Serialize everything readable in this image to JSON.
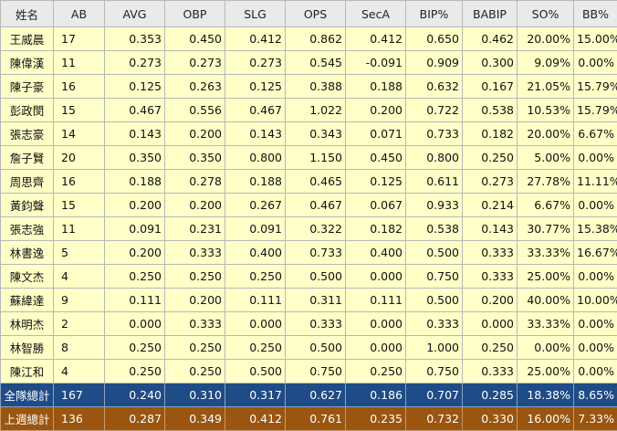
{
  "headers": [
    "姓名",
    "AB",
    "AVG",
    "OBP",
    "SLG",
    "OPS",
    "SecA",
    "BIP%",
    "BABIP",
    "SO%",
    "BB%"
  ],
  "rows": [
    {
      "name": "王威晨",
      "AB": "17",
      "AVG": "0.353",
      "OBP": "0.450",
      "SLG": "0.412",
      "OPS": "0.862",
      "SecA": "0.412",
      "BIP": "0.650",
      "BABIP": "0.462",
      "SO": "20.00%",
      "BB": "15.00%"
    },
    {
      "name": "陳偉漢",
      "AB": "11",
      "AVG": "0.273",
      "OBP": "0.273",
      "SLG": "0.273",
      "OPS": "0.545",
      "SecA": "-0.091",
      "BIP": "0.909",
      "BABIP": "0.300",
      "SO": "9.09%",
      "BB": "0.00%"
    },
    {
      "name": "陳子豪",
      "AB": "16",
      "AVG": "0.125",
      "OBP": "0.263",
      "SLG": "0.125",
      "OPS": "0.388",
      "SecA": "0.188",
      "BIP": "0.632",
      "BABIP": "0.167",
      "SO": "21.05%",
      "BB": "15.79%"
    },
    {
      "name": "彭政閔",
      "AB": "15",
      "AVG": "0.467",
      "OBP": "0.556",
      "SLG": "0.467",
      "OPS": "1.022",
      "SecA": "0.200",
      "BIP": "0.722",
      "BABIP": "0.538",
      "SO": "10.53%",
      "BB": "15.79%"
    },
    {
      "name": "張志豪",
      "AB": "14",
      "AVG": "0.143",
      "OBP": "0.200",
      "SLG": "0.143",
      "OPS": "0.343",
      "SecA": "0.071",
      "BIP": "0.733",
      "BABIP": "0.182",
      "SO": "20.00%",
      "BB": "6.67%"
    },
    {
      "name": "詹子賢",
      "AB": "20",
      "AVG": "0.350",
      "OBP": "0.350",
      "SLG": "0.800",
      "OPS": "1.150",
      "SecA": "0.450",
      "BIP": "0.800",
      "BABIP": "0.250",
      "SO": "5.00%",
      "BB": "0.00%"
    },
    {
      "name": "周思齊",
      "AB": "16",
      "AVG": "0.188",
      "OBP": "0.278",
      "SLG": "0.188",
      "OPS": "0.465",
      "SecA": "0.125",
      "BIP": "0.611",
      "BABIP": "0.273",
      "SO": "27.78%",
      "BB": "11.11%"
    },
    {
      "name": "黃鈞聲",
      "AB": "15",
      "AVG": "0.200",
      "OBP": "0.200",
      "SLG": "0.267",
      "OPS": "0.467",
      "SecA": "0.067",
      "BIP": "0.933",
      "BABIP": "0.214",
      "SO": "6.67%",
      "BB": "0.00%"
    },
    {
      "name": "張志強",
      "AB": "11",
      "AVG": "0.091",
      "OBP": "0.231",
      "SLG": "0.091",
      "OPS": "0.322",
      "SecA": "0.182",
      "BIP": "0.538",
      "BABIP": "0.143",
      "SO": "30.77%",
      "BB": "15.38%"
    },
    {
      "name": "林書逸",
      "AB": "5",
      "AVG": "0.200",
      "OBP": "0.333",
      "SLG": "0.400",
      "OPS": "0.733",
      "SecA": "0.400",
      "BIP": "0.500",
      "BABIP": "0.333",
      "SO": "33.33%",
      "BB": "16.67%"
    },
    {
      "name": "陳文杰",
      "AB": "4",
      "AVG": "0.250",
      "OBP": "0.250",
      "SLG": "0.250",
      "OPS": "0.500",
      "SecA": "0.000",
      "BIP": "0.750",
      "BABIP": "0.333",
      "SO": "25.00%",
      "BB": "0.00%"
    },
    {
      "name": "蘇緯達",
      "AB": "9",
      "AVG": "0.111",
      "OBP": "0.200",
      "SLG": "0.111",
      "OPS": "0.311",
      "SecA": "0.111",
      "BIP": "0.500",
      "BABIP": "0.200",
      "SO": "40.00%",
      "BB": "10.00%"
    },
    {
      "name": "林明杰",
      "AB": "2",
      "AVG": "0.000",
      "OBP": "0.333",
      "SLG": "0.000",
      "OPS": "0.333",
      "SecA": "0.000",
      "BIP": "0.333",
      "BABIP": "0.000",
      "SO": "33.33%",
      "BB": "0.00%"
    },
    {
      "name": "林智勝",
      "AB": "8",
      "AVG": "0.250",
      "OBP": "0.250",
      "SLG": "0.250",
      "OPS": "0.500",
      "SecA": "0.000",
      "BIP": "1.000",
      "BABIP": "0.250",
      "SO": "0.00%",
      "BB": "0.00%"
    },
    {
      "name": "陳江和",
      "AB": "4",
      "AVG": "0.250",
      "OBP": "0.250",
      "SLG": "0.500",
      "OPS": "0.750",
      "SecA": "0.250",
      "BIP": "0.750",
      "BABIP": "0.333",
      "SO": "25.00%",
      "BB": "0.00%"
    }
  ],
  "totals": [
    {
      "name": "全隊總計",
      "AB": "167",
      "AVG": "0.240",
      "OBP": "0.310",
      "SLG": "0.317",
      "OPS": "0.627",
      "SecA": "0.186",
      "BIP": "0.707",
      "BABIP": "0.285",
      "SO": "18.38%",
      "BB": "8.65%"
    },
    {
      "name": "上週總計",
      "AB": "136",
      "AVG": "0.287",
      "OBP": "0.349",
      "SLG": "0.412",
      "OPS": "0.761",
      "SecA": "0.235",
      "BIP": "0.732",
      "BABIP": "0.330",
      "SO": "16.00%",
      "BB": "7.33%"
    }
  ],
  "colors": {
    "header_bg": "#eaeaea",
    "row_bg": "#ffffc8",
    "total_bg": "#1f4c86",
    "prev_bg": "#9a5510"
  }
}
